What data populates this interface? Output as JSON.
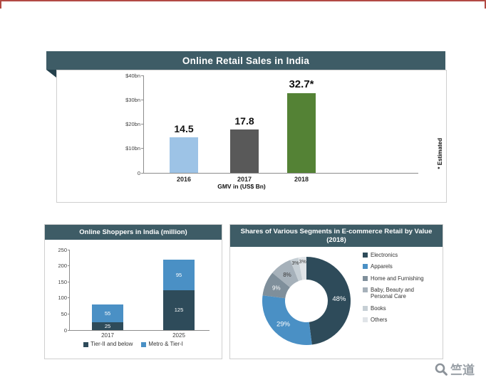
{
  "page": {
    "watermark": {
      "brand": "竺道"
    }
  },
  "chart_data": [
    {
      "id": "online-retail-sales",
      "type": "bar",
      "title": "Online Retail Sales in India",
      "categories": [
        "2016",
        "2017",
        "2018"
      ],
      "values": [
        14.5,
        17.8,
        32.7
      ],
      "value_labels": [
        "14.5",
        "17.8",
        "32.7*"
      ],
      "bar_colors": [
        "#9dc3e6",
        "#595959",
        "#548235"
      ],
      "ylim": [
        0,
        40
      ],
      "yticks": [
        "$40bn",
        "$30bn",
        "$20bn",
        "$10bn",
        "0"
      ],
      "xlabel": "GMV in (US$ Bn)",
      "footnote": "* Estimated",
      "header_color": "#3e5c66",
      "grid": false
    },
    {
      "id": "online-shoppers",
      "type": "stacked-bar",
      "title": "Online Shoppers in India (million)",
      "categories": [
        "2017",
        "2025"
      ],
      "series": [
        {
          "name": "Tier-II and below",
          "color": "#2e4b5a",
          "values": [
            25,
            125
          ]
        },
        {
          "name": "Metro & Tier-I",
          "color": "#4a90c5",
          "values": [
            55,
            95
          ]
        }
      ],
      "ylim": [
        0,
        250
      ],
      "yticks": [
        "250",
        "200",
        "150",
        "100",
        "50",
        "0"
      ],
      "legend_position": "bottom",
      "grid": false
    },
    {
      "id": "segment-shares",
      "type": "donut",
      "title": "Shares of Various Segments in E-commerce Retail by Value",
      "subtitle": "(2018)",
      "slices": [
        {
          "label": "Electronics",
          "value": 48,
          "pct_label": "48%",
          "color": "#2e4b5a",
          "label_color": "#ffffff"
        },
        {
          "label": "Apparels",
          "value": 29,
          "pct_label": "29%",
          "color": "#4a90c5",
          "label_color": "#ffffff"
        },
        {
          "label": "Home and Furnishing",
          "value": 9,
          "pct_label": "9%",
          "color": "#7f8f9b",
          "label_color": "#ffffff"
        },
        {
          "label": "Baby, Beauty and Personal Care",
          "value": 8,
          "pct_label": "8%",
          "color": "#a6b1ba",
          "label_color": "#3a3a3a"
        },
        {
          "label": "Books",
          "value": 3,
          "pct_label": "3%",
          "color": "#c6cfd5",
          "label_color": "#3a3a3a"
        },
        {
          "label": "Others",
          "value": 3,
          "pct_label": "3%",
          "color": "#e0e4e8",
          "label_color": "#3a3a3a"
        }
      ],
      "legend_position": "right"
    }
  ]
}
